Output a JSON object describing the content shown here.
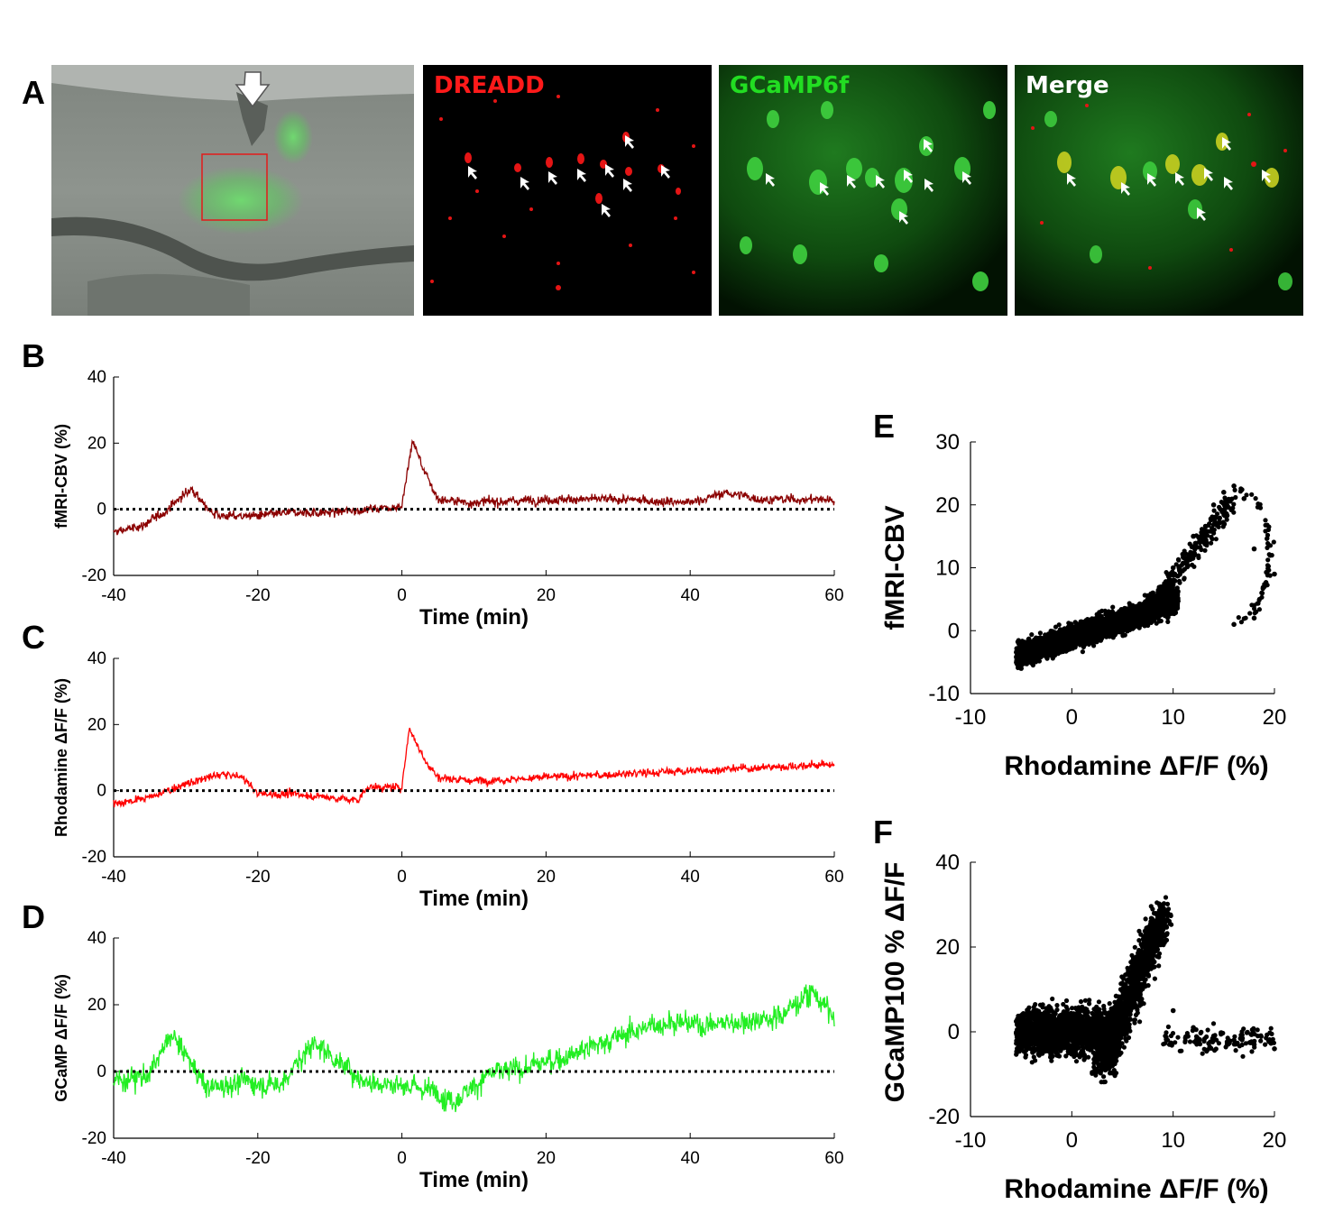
{
  "panels": {
    "A": "A",
    "B": "B",
    "C": "C",
    "D": "D",
    "E": "E",
    "F": "F"
  },
  "images": {
    "dreadd_label": "DREADD",
    "gcamp_label": "GCaMP6f",
    "merge_label": "Merge",
    "colors": {
      "dreadd": "#ff1a1a",
      "gcamp": "#22dd22",
      "merge": "#ffffff"
    }
  },
  "chart_data": [
    {
      "id": "B",
      "type": "line",
      "ylabel": "fMRI-CBV (%)",
      "xlabel": "Time (min)",
      "xlim": [
        -40,
        60
      ],
      "ylim": [
        -20,
        40
      ],
      "xticks": [
        "-40",
        "-20",
        "0",
        "20",
        "40",
        "60"
      ],
      "yticks": [
        "40",
        "20",
        "0",
        "-20"
      ],
      "color": "#8b0000",
      "baseline": 0,
      "x": [
        -40,
        -36,
        -33,
        -30,
        -29,
        -27,
        -25,
        -20,
        -15,
        -10,
        -5,
        0,
        1.5,
        3,
        5,
        10,
        20,
        30,
        40,
        45,
        50,
        60
      ],
      "values": [
        -7,
        -5,
        -1,
        5,
        6,
        0,
        -2,
        -2,
        -1,
        -1,
        0,
        1,
        21,
        12,
        3,
        2,
        3,
        3,
        2,
        5,
        3,
        3
      ]
    },
    {
      "id": "C",
      "type": "line",
      "ylabel": "Rhodamine ΔF/F (%)",
      "xlabel": "Time (min)",
      "xlim": [
        -40,
        60
      ],
      "ylim": [
        -20,
        40
      ],
      "xticks": [
        "-40",
        "-20",
        "0",
        "20",
        "40",
        "60"
      ],
      "yticks": [
        "40",
        "20",
        "0",
        "-20"
      ],
      "color": "#ff0000",
      "baseline": 0,
      "x": [
        -40,
        -35,
        -30,
        -25,
        -22,
        -20,
        -15,
        -10,
        -6,
        -5,
        0,
        1,
        3,
        5,
        10,
        20,
        30,
        40,
        50,
        60
      ],
      "values": [
        -4,
        -2,
        2,
        5,
        4,
        -1,
        -1,
        -2,
        -3,
        1,
        1,
        19,
        10,
        4,
        3,
        4,
        5,
        6,
        7,
        8
      ]
    },
    {
      "id": "D",
      "type": "line",
      "ylabel": "GCaMP ΔF/F (%)",
      "xlabel": "Time (min)",
      "xlim": [
        -40,
        60
      ],
      "ylim": [
        -20,
        40
      ],
      "xticks": [
        "-40",
        "-20",
        "0",
        "20",
        "40",
        "60"
      ],
      "yticks": [
        "40",
        "20",
        "0",
        "-20"
      ],
      "color": "#22ee22",
      "baseline": 0,
      "x": [
        -40,
        -35,
        -32,
        -30,
        -27,
        -22,
        -17,
        -12,
        -9,
        -5,
        0,
        5,
        7,
        12,
        17,
        22,
        27,
        32,
        37,
        42,
        47,
        52,
        57,
        60
      ],
      "values": [
        -3,
        -1,
        11,
        5,
        -5,
        -3,
        -4,
        9,
        3,
        -3,
        -4,
        -6,
        -9,
        -1,
        1,
        4,
        8,
        12,
        15,
        14,
        15,
        16,
        24,
        16
      ]
    },
    {
      "id": "E",
      "type": "scatter",
      "xlabel": "Rhodamine ΔF/F (%)",
      "ylabel": "fMRI-CBV",
      "xlim": [
        -10,
        20
      ],
      "ylim": [
        -10,
        30
      ],
      "xticks": [
        "-10",
        "0",
        "10",
        "20"
      ],
      "yticks": [
        "30",
        "20",
        "10",
        "0",
        "-10"
      ],
      "x": [
        -5,
        -4,
        -3,
        -2,
        0,
        2,
        4,
        6,
        8,
        10,
        12,
        14,
        15,
        16,
        17,
        18,
        19,
        20,
        18,
        16
      ],
      "values": [
        -6,
        -4,
        -3,
        -2,
        -1,
        1,
        3,
        4,
        6,
        10,
        15,
        20,
        22,
        23,
        21,
        13,
        7,
        9,
        2,
        1
      ]
    },
    {
      "id": "F",
      "type": "scatter",
      "xlabel": "Rhodamine ΔF/F (%)",
      "ylabel": "GCaMP100 % ΔF/F",
      "xlim": [
        -10,
        20
      ],
      "ylim": [
        -20,
        40
      ],
      "xticks": [
        "-10",
        "0",
        "10",
        "20"
      ],
      "yticks": [
        "40",
        "20",
        "0",
        "-20"
      ],
      "x": [
        -5,
        -4,
        -2,
        0,
        2,
        3,
        4,
        5,
        6,
        7,
        8,
        9,
        10,
        12,
        14,
        16,
        18,
        20
      ],
      "values": [
        -4,
        2,
        5,
        3,
        -2,
        -6,
        -8,
        4,
        12,
        18,
        26,
        30,
        5,
        1,
        -1,
        -2,
        -3,
        -4
      ]
    }
  ]
}
